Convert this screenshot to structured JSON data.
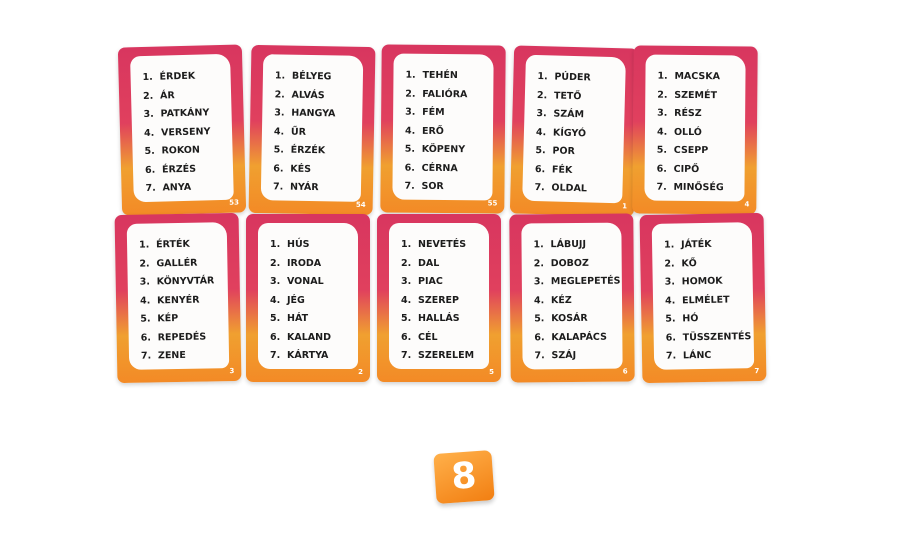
{
  "list_numbers": [
    "1.",
    "2.",
    "3.",
    "4.",
    "5.",
    "6.",
    "7."
  ],
  "cards": [
    {
      "number": "53",
      "words": [
        "ÉRDEK",
        "ÁR",
        "PATKÁNY",
        "VERSENY",
        "ROKON",
        "ÉRZÉS",
        "ANYA"
      ]
    },
    {
      "number": "54",
      "words": [
        "BÉLYEG",
        "ALVÁS",
        "HANGYA",
        "ŰR",
        "ÉRZÉK",
        "KÉS",
        "NYÁR"
      ]
    },
    {
      "number": "55",
      "words": [
        "TEHÉN",
        "FALIÓRA",
        "FÉM",
        "ERŐ",
        "KÖPENY",
        "CÉRNA",
        "SOR"
      ]
    },
    {
      "number": "1",
      "words": [
        "PÚDER",
        "TETŐ",
        "SZÁM",
        "KÍGYÓ",
        "POR",
        "FÉK",
        "OLDAL"
      ]
    },
    {
      "number": "4",
      "words": [
        "MACSKA",
        "SZEMÉT",
        "RÉSZ",
        "OLLÓ",
        "CSEPP",
        "CIPŐ",
        "MINŐSÉG"
      ]
    },
    {
      "number": "3",
      "words": [
        "ÉRTÉK",
        "GALLÉR",
        "KÖNYVTÁR",
        "KENYÉR",
        "KÉP",
        "REPEDÉS",
        "ZENE"
      ]
    },
    {
      "number": "2",
      "words": [
        "HÚS",
        "IRODA",
        "VONAL",
        "JÉG",
        "HÁT",
        "KALAND",
        "KÁRTYA"
      ]
    },
    {
      "number": "5",
      "words": [
        "NEVETÉS",
        "DAL",
        "PIAC",
        "SZEREP",
        "HALLÁS",
        "CÉL",
        "SZERELEM"
      ]
    },
    {
      "number": "6",
      "words": [
        "LÁBUJJ",
        "DOBOZ",
        "MEGLEPETÉS",
        "KÉZ",
        "KOSÁR",
        "KALAPÁCS",
        "SZÁJ"
      ]
    },
    {
      "number": "7",
      "words": [
        "JÁTÉK",
        "KŐ",
        "HOMOK",
        "ELMÉLET",
        "HÓ",
        "TÜSSZENTÉS",
        "LÁNC"
      ]
    }
  ],
  "die": "8"
}
